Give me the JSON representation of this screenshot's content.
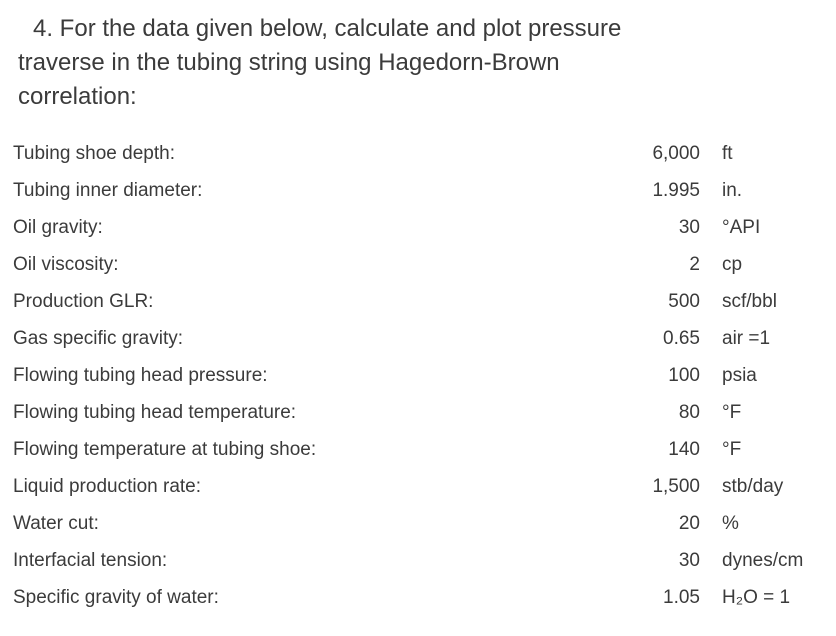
{
  "page": {
    "background_color": "#ffffff",
    "text_color": "#3b3b3b"
  },
  "heading": {
    "full_text": "4. For the data given below, calculate and plot pressure traverse in the tubing string using Hagedorn-Brown correlation:",
    "lines": [
      "4. For the data given below, calculate and plot pressure",
      "traverse in the tubing string using Hagedorn-Brown",
      "correlation:"
    ]
  },
  "table": {
    "rows": [
      {
        "label": "Tubing shoe depth:",
        "value": "6,000",
        "unit": "ft"
      },
      {
        "label": "Tubing inner diameter:",
        "value": "1.995",
        "unit": "in."
      },
      {
        "label": "Oil gravity:",
        "value": "30",
        "unit": "°API"
      },
      {
        "label": "Oil viscosity:",
        "value": "2",
        "unit": "cp"
      },
      {
        "label": "Production GLR:",
        "value": "500",
        "unit": "scf/bbl"
      },
      {
        "label": "Gas specific gravity:",
        "value": "0.65",
        "unit": "air =1"
      },
      {
        "label": "Flowing tubing head pressure:",
        "value": "100",
        "unit": "psia"
      },
      {
        "label": "Flowing tubing head temperature:",
        "value": "80",
        "unit": "°F"
      },
      {
        "label": "Flowing temperature at tubing shoe:",
        "value": "140",
        "unit": "°F"
      },
      {
        "label": "Liquid production rate:",
        "value": "1,500",
        "unit": "stb/day"
      },
      {
        "label": "Water cut:",
        "value": "20",
        "unit": "%"
      },
      {
        "label": "Interfacial tension:",
        "value": "30",
        "unit": "dynes/cm"
      },
      {
        "label": "Specific gravity of water:",
        "value": "1.05",
        "unit": "H₂O = 1"
      }
    ]
  }
}
